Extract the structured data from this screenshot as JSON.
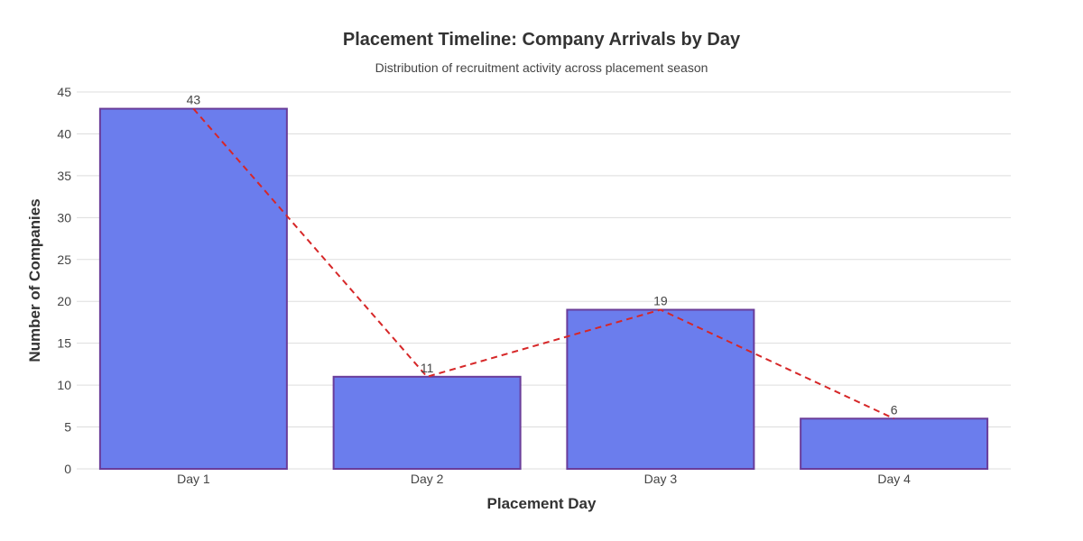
{
  "chart_data": {
    "type": "bar",
    "title": "Placement Timeline: Company Arrivals by Day",
    "subtitle": "Distribution of recruitment activity across placement season",
    "xlabel": "Placement Day",
    "ylabel": "Number of Companies",
    "categories": [
      "Day 1",
      "Day 2",
      "Day 3",
      "Day 4"
    ],
    "values": [
      43,
      11,
      19,
      6
    ],
    "data_labels": [
      "43",
      "11",
      "19",
      "6"
    ],
    "ylim": [
      0,
      45
    ],
    "yticks": [
      0,
      5,
      10,
      15,
      20,
      25,
      30,
      35,
      40,
      45
    ],
    "grid": true,
    "legend": "none",
    "trend_line": {
      "style": "dashed",
      "color": "#d62728"
    },
    "colors": {
      "bar_fill": "#6b7ded",
      "bar_edge": "#6a3d9a",
      "grid": "#dddddd"
    }
  }
}
